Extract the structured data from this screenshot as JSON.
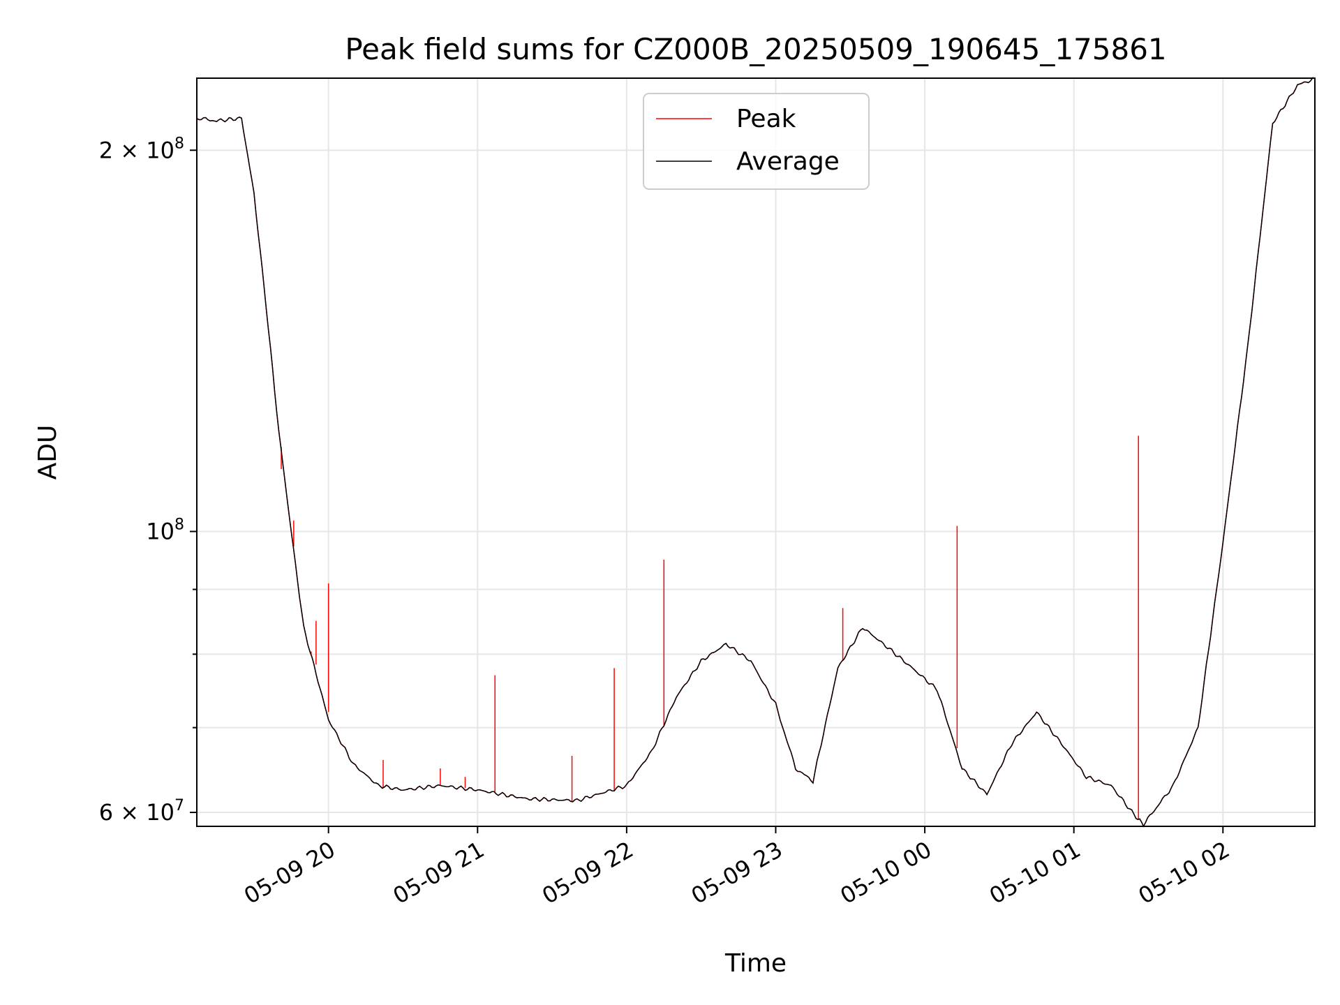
{
  "chart_data": {
    "type": "line",
    "title": "Peak field sums for CZ000B_20250509_190645_175861",
    "xlabel": "Time",
    "ylabel": "ADU",
    "y_scale": "log",
    "xlim": [
      "2025-05-09 19:07",
      "2025-05-10 02:37"
    ],
    "ylim": [
      58500000,
      228000000
    ],
    "grid": true,
    "legend_position": "upper center",
    "x_ticks": [
      {
        "value": "2025-05-09 20:00",
        "label": "05-09 20"
      },
      {
        "value": "2025-05-09 21:00",
        "label": "05-09 21"
      },
      {
        "value": "2025-05-09 22:00",
        "label": "05-09 22"
      },
      {
        "value": "2025-05-09 23:00",
        "label": "05-09 23"
      },
      {
        "value": "2025-05-10 00:00",
        "label": "05-10 00"
      },
      {
        "value": "2025-05-10 01:00",
        "label": "05-10 01"
      },
      {
        "value": "2025-05-10 02:00",
        "label": "05-10 02"
      }
    ],
    "y_major_ticks": [
      {
        "value": 60000000,
        "label": "6 × 10",
        "exp": "7"
      },
      {
        "value": 100000000,
        "label": "10",
        "exp": "8"
      },
      {
        "value": 200000000,
        "label": "2 × 10",
        "exp": "8"
      }
    ],
    "y_minor_ticks": [
      70000000,
      80000000,
      90000000
    ],
    "series": [
      {
        "name": "Peak",
        "color": "#ff0000",
        "spikes": [
          {
            "x": "2025-05-09 19:41",
            "y": 112000000
          },
          {
            "x": "2025-05-09 19:46",
            "y": 102000000
          },
          {
            "x": "2025-05-09 19:53",
            "y": 80000000
          },
          {
            "x": "2025-05-09 19:55",
            "y": 85000000
          },
          {
            "x": "2025-05-09 20:00",
            "y": 91000000
          },
          {
            "x": "2025-05-09 20:22",
            "y": 66000000
          },
          {
            "x": "2025-05-09 20:45",
            "y": 65000000
          },
          {
            "x": "2025-05-09 20:55",
            "y": 64000000
          },
          {
            "x": "2025-05-09 21:07",
            "y": 77000000
          },
          {
            "x": "2025-05-09 21:38",
            "y": 66500000
          },
          {
            "x": "2025-05-09 21:55",
            "y": 78000000
          },
          {
            "x": "2025-05-09 22:15",
            "y": 95000000
          },
          {
            "x": "2025-05-09 23:27",
            "y": 87000000
          },
          {
            "x": "2025-05-10 00:13",
            "y": 101000000
          },
          {
            "x": "2025-05-10 01:26",
            "y": 119000000
          }
        ]
      },
      {
        "name": "Average",
        "color": "#000000",
        "x": [
          "2025-05-09 19:07",
          "2025-05-09 19:15",
          "2025-05-09 19:25",
          "2025-05-09 19:30",
          "2025-05-09 19:35",
          "2025-05-09 19:40",
          "2025-05-09 19:45",
          "2025-05-09 19:50",
          "2025-05-09 20:00",
          "2025-05-09 20:10",
          "2025-05-09 20:20",
          "2025-05-09 20:30",
          "2025-05-09 20:45",
          "2025-05-09 21:00",
          "2025-05-09 21:20",
          "2025-05-09 21:40",
          "2025-05-09 22:00",
          "2025-05-09 22:10",
          "2025-05-09 22:20",
          "2025-05-09 22:30",
          "2025-05-09 22:40",
          "2025-05-09 22:50",
          "2025-05-09 23:00",
          "2025-05-09 23:08",
          "2025-05-09 23:15",
          "2025-05-09 23:25",
          "2025-05-09 23:35",
          "2025-05-09 23:45",
          "2025-05-09 23:55",
          "2025-05-10 00:05",
          "2025-05-10 00:15",
          "2025-05-10 00:25",
          "2025-05-10 00:35",
          "2025-05-10 00:45",
          "2025-05-10 00:55",
          "2025-05-10 01:05",
          "2025-05-10 01:15",
          "2025-05-10 01:25",
          "2025-05-10 01:28",
          "2025-05-10 01:40",
          "2025-05-10 01:50",
          "2025-05-10 02:00",
          "2025-05-10 02:10",
          "2025-05-10 02:20",
          "2025-05-10 02:30",
          "2025-05-10 02:37"
        ],
        "y": [
          212000000,
          211000000,
          212000000,
          185000000,
          150000000,
          120000000,
          100000000,
          84000000,
          71000000,
          65500000,
          63000000,
          62500000,
          63000000,
          62500000,
          61500000,
          61300000,
          63000000,
          67000000,
          74000000,
          79000000,
          81500000,
          79000000,
          73000000,
          65000000,
          63500000,
          78000000,
          84000000,
          81000000,
          78000000,
          75000000,
          65000000,
          62000000,
          68000000,
          72000000,
          68000000,
          64000000,
          63000000,
          59500000,
          58700000,
          63000000,
          70000000,
          98000000,
          140000000,
          210000000,
          225000000,
          228000000
        ]
      }
    ]
  }
}
